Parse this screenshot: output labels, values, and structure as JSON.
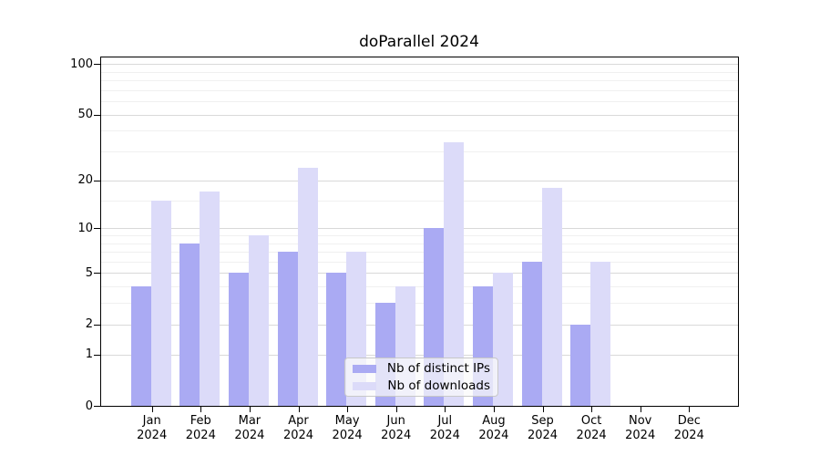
{
  "chart_data": {
    "type": "bar",
    "title": "doParallel 2024",
    "categories": [
      "Jan",
      "Feb",
      "Mar",
      "Apr",
      "May",
      "Jun",
      "Jul",
      "Aug",
      "Sep",
      "Oct",
      "Nov",
      "Dec"
    ],
    "category_sublabel": "2024",
    "series": [
      {
        "name": "Nb of distinct IPs",
        "color": "#aaaaf3",
        "values": [
          4,
          8,
          5,
          7,
          5,
          3,
          10,
          4,
          6,
          2,
          0,
          0
        ]
      },
      {
        "name": "Nb of downloads",
        "color": "#dcdbf9",
        "values": [
          15,
          17,
          9,
          24,
          7,
          4,
          34,
          5,
          18,
          6,
          0,
          0
        ]
      }
    ],
    "yscale": "log1p",
    "ylim": [
      0,
      100
    ],
    "yticks": [
      0,
      1,
      2,
      5,
      10,
      20,
      50,
      100
    ],
    "minor_gridlines": [
      3,
      4,
      6,
      7,
      8,
      9,
      15,
      30,
      40,
      60,
      70,
      80,
      90
    ],
    "grid": true,
    "legend_position": "bottom-center",
    "colors": {
      "major_grid": "#d9d9d9",
      "minor_grid": "#f0f0f0",
      "axis": "#000000",
      "text": "#000000",
      "background": "#ffffff"
    }
  }
}
